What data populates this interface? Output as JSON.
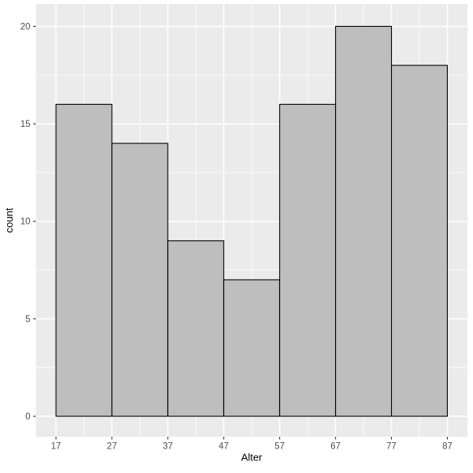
{
  "chart_data": {
    "type": "bar",
    "subtype": "histogram",
    "title": "",
    "xlabel": "Alter",
    "ylabel": "count",
    "bin_edges": [
      17,
      27,
      37,
      47,
      57,
      67,
      77,
      87
    ],
    "values": [
      16,
      14,
      9,
      7,
      16,
      20,
      18
    ],
    "x_ticks": [
      17,
      27,
      37,
      47,
      57,
      67,
      77,
      87
    ],
    "y_ticks": [
      0,
      5,
      10,
      15,
      20
    ],
    "x_minor_gridlines": [
      22,
      32,
      42,
      52,
      62,
      72,
      82
    ],
    "y_minor_gridlines": [
      2.5,
      7.5,
      12.5,
      17.5
    ],
    "xlim": [
      13.4,
      90.6
    ],
    "ylim": [
      -1.05,
      21.15
    ],
    "grid": true,
    "legend": "none",
    "colors": {
      "page_background": "#FFFFFF",
      "panel_background": "#EBEBEB",
      "grid_major": "#FFFFFF",
      "grid_minor": "#FFFFFF",
      "bar_fill": "#BEBEBE",
      "bar_stroke": "#000000",
      "tick_label": "#4D4D4D",
      "axis_title": "#000000",
      "tick_mark": "#333333"
    }
  }
}
